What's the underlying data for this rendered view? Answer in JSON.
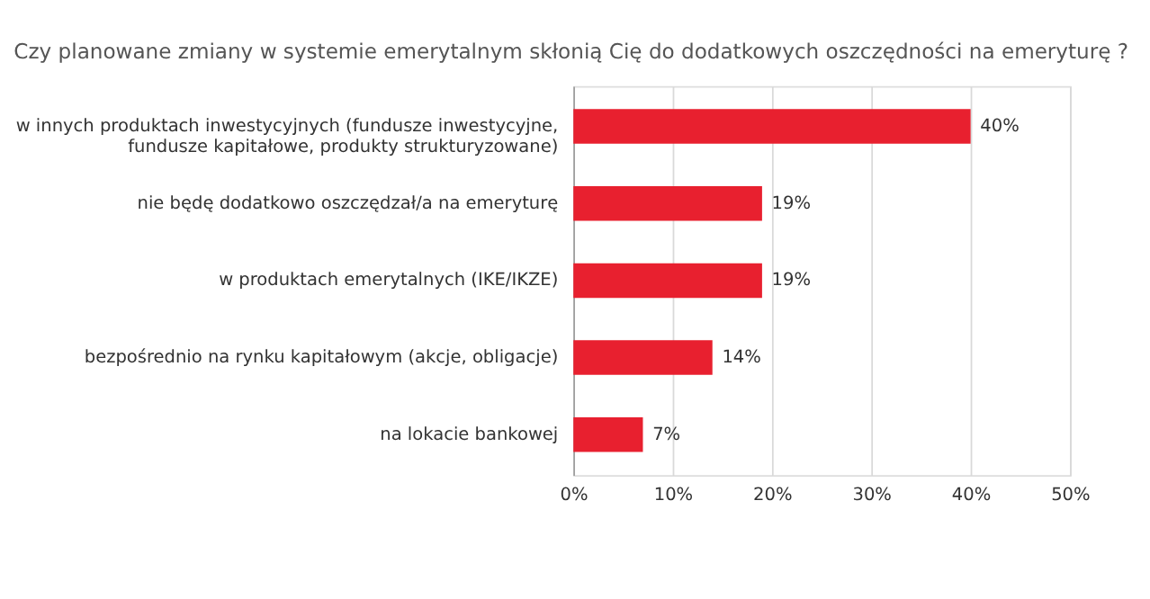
{
  "chart_data": {
    "type": "bar",
    "orientation": "horizontal",
    "title": "Czy planowane zmiany w systemie emerytalnym skłonią Cię do dodatkowych oszczędności na emeryturę ?",
    "categories": [
      "w innych produktach inwestycyjnych (fundusze inwestycyjne, fundusze kapitałowe, produkty strukturyzowane)",
      "nie będę dodatkowo oszczędzał/a na emeryturę",
      "w produktach emerytalnych (IKE/IKZE)",
      "bezpośrednio na rynku kapitałowym (akcje, obligacje)",
      "na lokacie bankowej"
    ],
    "values": [
      40,
      19,
      19,
      14,
      7
    ],
    "value_labels": [
      "40%",
      "19%",
      "19%",
      "14%",
      "7%"
    ],
    "color": "#e8202f",
    "xlim": [
      0,
      50
    ],
    "xticks": [
      {
        "value": 0,
        "label": "0%"
      },
      {
        "value": 10,
        "label": "10%"
      },
      {
        "value": 20,
        "label": "20%"
      },
      {
        "value": 30,
        "label": "30%"
      },
      {
        "value": 40,
        "label": "40%"
      },
      {
        "value": 50,
        "label": "50%"
      }
    ],
    "grid": "x"
  }
}
